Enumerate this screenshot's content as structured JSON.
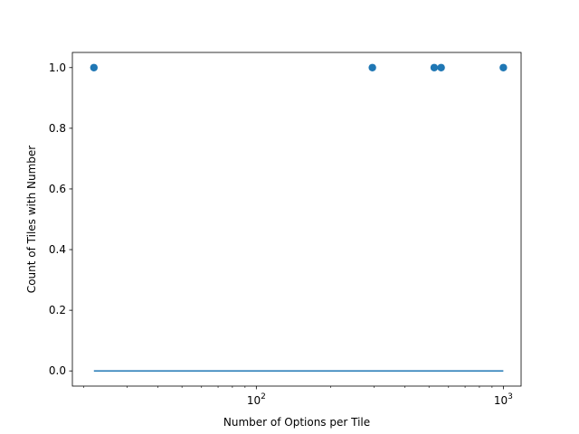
{
  "chart_data": {
    "type": "scatter",
    "xlabel": "Number of Options per Tile",
    "ylabel": "Count of Tiles with Number",
    "xscale": "log",
    "xlim": [
      18,
      1180
    ],
    "ylim": [
      -0.05,
      1.05
    ],
    "grid": false,
    "legend": "none",
    "x_ticks": [
      {
        "value": 100,
        "base": "10",
        "exp": "2"
      },
      {
        "value": 1000,
        "base": "10",
        "exp": "3"
      }
    ],
    "y_ticks": [
      {
        "value": 0.0,
        "label": "0.0"
      },
      {
        "value": 0.2,
        "label": "0.2"
      },
      {
        "value": 0.4,
        "label": "0.4"
      },
      {
        "value": 0.6,
        "label": "0.6"
      },
      {
        "value": 0.8,
        "label": "0.8"
      },
      {
        "value": 1.0,
        "label": "1.0"
      }
    ],
    "series": [
      {
        "type": "scatter",
        "x": [
          22,
          295,
          525,
          560,
          1000
        ],
        "y": [
          1,
          1,
          1,
          1,
          1
        ]
      },
      {
        "type": "line",
        "x": [
          22,
          1000
        ],
        "y": [
          0,
          0
        ]
      }
    ],
    "colors": {
      "series": "#1f77b4",
      "axis": "#000000"
    }
  }
}
